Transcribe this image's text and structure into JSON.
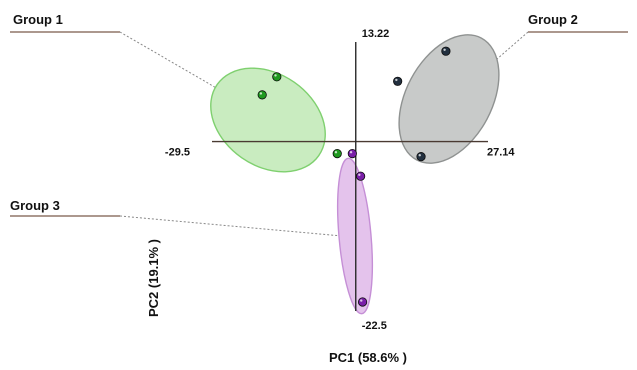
{
  "chart_data": {
    "type": "scatter",
    "xlabel": "PC1 (58.6% )",
    "ylabel": "PC2 (19.1% )",
    "xlim": [
      -29.5,
      27.14
    ],
    "ylim": [
      -22.5,
      13.22
    ],
    "axis_ticks": {
      "x_min": "-29.5",
      "x_max": "27.14",
      "y_max": "13.22",
      "y_min": "-22.5"
    },
    "grid": false,
    "series": [
      {
        "name": "Group 1",
        "color": "#1f9a1f",
        "ellipse_fill": "#c9ecc0",
        "ellipse_stroke": "#7fd06f",
        "points": [
          [
            -16.2,
            8.6
          ],
          [
            -19.2,
            6.2
          ],
          [
            -3.8,
            -1.6
          ]
        ]
      },
      {
        "name": "Group 2",
        "color": "#22303f",
        "ellipse_fill": "#c8cac9",
        "ellipse_stroke": "#8f9291",
        "points": [
          [
            18.5,
            12.0
          ],
          [
            8.6,
            8.0
          ],
          [
            13.4,
            -2.0
          ]
        ]
      },
      {
        "name": "Group 3",
        "color": "#7a1fa8",
        "ellipse_fill": "#e4c3ec",
        "ellipse_stroke": "#c58fd6",
        "points": [
          [
            -0.7,
            -1.6
          ],
          [
            1.0,
            -4.6
          ],
          [
            1.4,
            -21.3
          ]
        ]
      }
    ]
  }
}
